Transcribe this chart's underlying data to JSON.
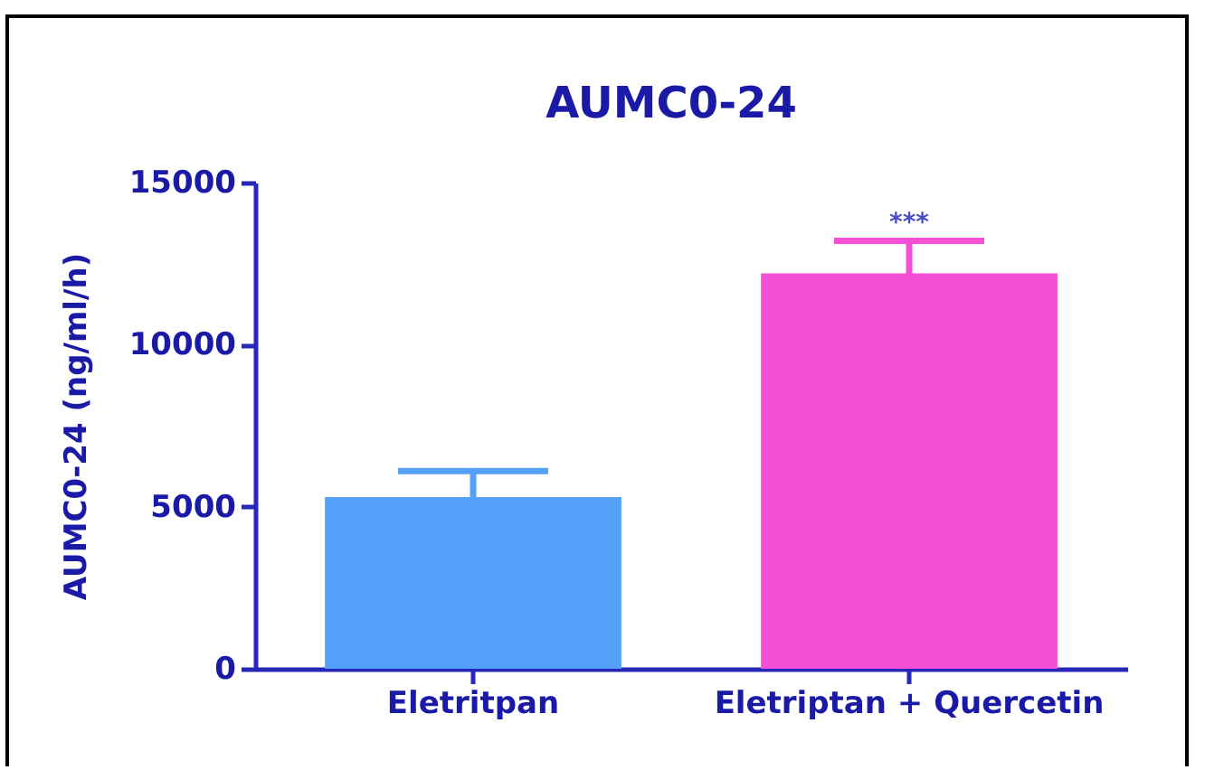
{
  "chart_data": {
    "type": "bar",
    "title": "AUMC0-24",
    "ylabel": "AUMC0-24 (ng/ml/h)",
    "categories": [
      "Eletritpan",
      "Eletriptan + Quercetin"
    ],
    "values": [
      5300,
      12200
    ],
    "colors": [
      "#55a1fa",
      "#f54fd5"
    ],
    "errors": [
      800,
      1000
    ],
    "ylim": [
      0,
      15000
    ],
    "yticks": [
      0,
      5000,
      10000,
      15000
    ],
    "annotations": [
      {
        "text": "***",
        "x": "Eletriptan + Quercetin",
        "y": 13200
      }
    ]
  }
}
